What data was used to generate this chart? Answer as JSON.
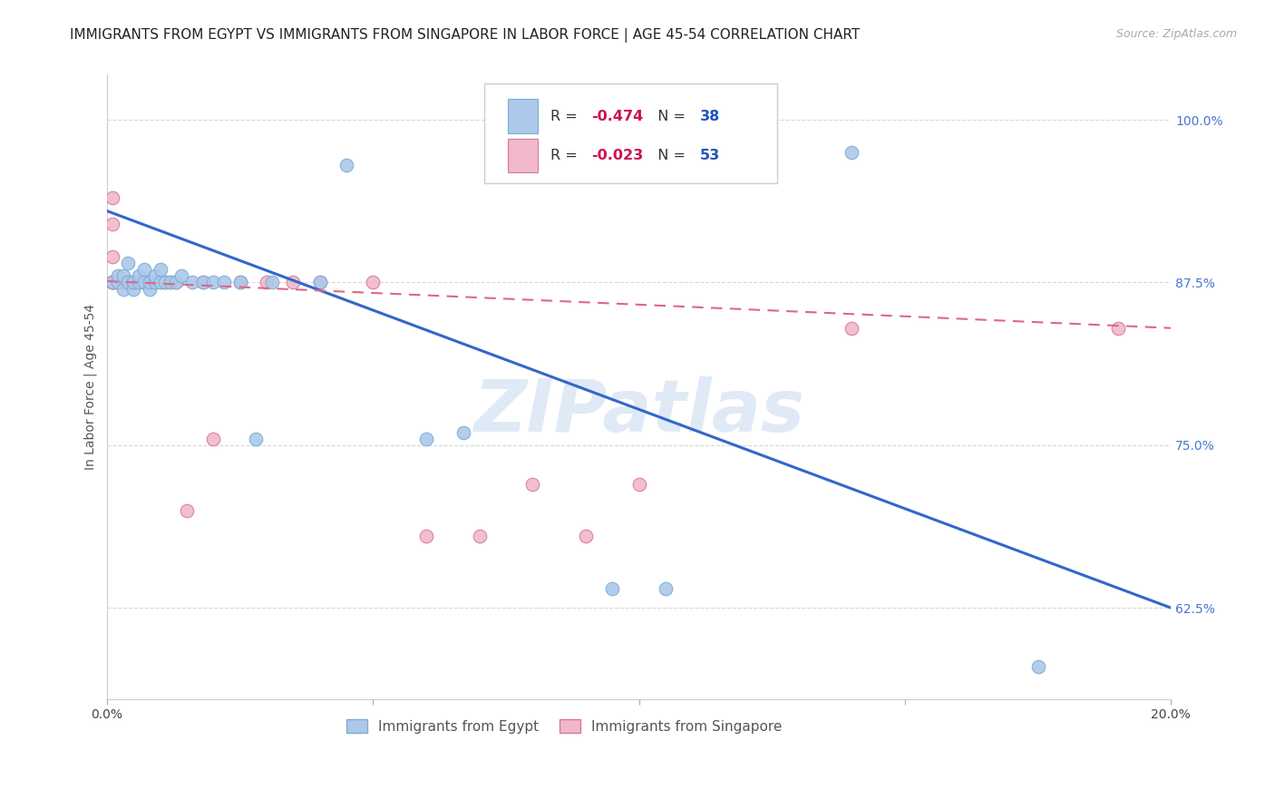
{
  "title": "IMMIGRANTS FROM EGYPT VS IMMIGRANTS FROM SINGAPORE IN LABOR FORCE | AGE 45-54 CORRELATION CHART",
  "source": "Source: ZipAtlas.com",
  "ylabel": "In Labor Force | Age 45-54",
  "xlim": [
    0.0,
    0.2
  ],
  "ylim": [
    0.555,
    1.035
  ],
  "xticks": [
    0.0,
    0.05,
    0.1,
    0.15,
    0.2
  ],
  "xticklabels": [
    "0.0%",
    "",
    "",
    "",
    "20.0%"
  ],
  "yticks": [
    0.625,
    0.75,
    0.875,
    1.0
  ],
  "yticklabels": [
    "62.5%",
    "75.0%",
    "87.5%",
    "100.0%"
  ],
  "egypt_color": "#adc8ea",
  "egypt_edge_color": "#7aadd4",
  "singapore_color": "#f0b8c8",
  "singapore_edge_color": "#d87898",
  "egypt_R": -0.474,
  "egypt_N": 38,
  "singapore_R": -0.023,
  "singapore_N": 53,
  "legend_R_color": "#cc1155",
  "legend_N_color": "#2255bb",
  "watermark": "ZIPatlas",
  "watermark_color": "#ccddf0",
  "egypt_scatter_x": [
    0.001,
    0.002,
    0.002,
    0.003,
    0.003,
    0.004,
    0.004,
    0.005,
    0.005,
    0.006,
    0.006,
    0.007,
    0.007,
    0.008,
    0.008,
    0.009,
    0.009,
    0.01,
    0.01,
    0.011,
    0.012,
    0.013,
    0.014,
    0.016,
    0.018,
    0.02,
    0.022,
    0.025,
    0.028,
    0.031,
    0.04,
    0.045,
    0.06,
    0.067,
    0.095,
    0.105,
    0.14,
    0.175
  ],
  "egypt_scatter_y": [
    0.875,
    0.875,
    0.88,
    0.87,
    0.88,
    0.875,
    0.89,
    0.87,
    0.875,
    0.875,
    0.88,
    0.875,
    0.885,
    0.87,
    0.875,
    0.875,
    0.88,
    0.875,
    0.885,
    0.875,
    0.875,
    0.875,
    0.88,
    0.875,
    0.875,
    0.875,
    0.875,
    0.875,
    0.755,
    0.875,
    0.875,
    0.965,
    0.755,
    0.76,
    0.64,
    0.64,
    0.975,
    0.58
  ],
  "singapore_scatter_x": [
    0.001,
    0.001,
    0.001,
    0.001,
    0.001,
    0.001,
    0.001,
    0.002,
    0.002,
    0.002,
    0.002,
    0.002,
    0.002,
    0.002,
    0.002,
    0.003,
    0.003,
    0.003,
    0.003,
    0.003,
    0.003,
    0.004,
    0.004,
    0.004,
    0.004,
    0.005,
    0.005,
    0.005,
    0.006,
    0.006,
    0.007,
    0.007,
    0.008,
    0.009,
    0.01,
    0.011,
    0.012,
    0.013,
    0.015,
    0.018,
    0.02,
    0.025,
    0.03,
    0.035,
    0.04,
    0.05,
    0.06,
    0.07,
    0.08,
    0.09,
    0.1,
    0.14,
    0.19
  ],
  "singapore_scatter_y": [
    0.875,
    0.875,
    0.875,
    0.895,
    0.92,
    0.94,
    0.875,
    0.875,
    0.875,
    0.875,
    0.875,
    0.875,
    0.875,
    0.875,
    0.875,
    0.875,
    0.875,
    0.875,
    0.875,
    0.875,
    0.875,
    0.875,
    0.875,
    0.875,
    0.875,
    0.875,
    0.875,
    0.875,
    0.875,
    0.875,
    0.875,
    0.875,
    0.875,
    0.875,
    0.875,
    0.875,
    0.875,
    0.875,
    0.7,
    0.875,
    0.755,
    0.875,
    0.875,
    0.875,
    0.875,
    0.875,
    0.68,
    0.68,
    0.72,
    0.68,
    0.72,
    0.84,
    0.84
  ],
  "egypt_trend_x": [
    0.0,
    0.2
  ],
  "egypt_trend_y": [
    0.93,
    0.625
  ],
  "singapore_trend_x": [
    0.0,
    0.2
  ],
  "singapore_trend_y": [
    0.876,
    0.84
  ],
  "grid_color": "#d8d8d8",
  "bg_color": "#ffffff",
  "title_fontsize": 11,
  "ylabel_fontsize": 10,
  "tick_fontsize": 10,
  "legend_fontsize": 11.5
}
